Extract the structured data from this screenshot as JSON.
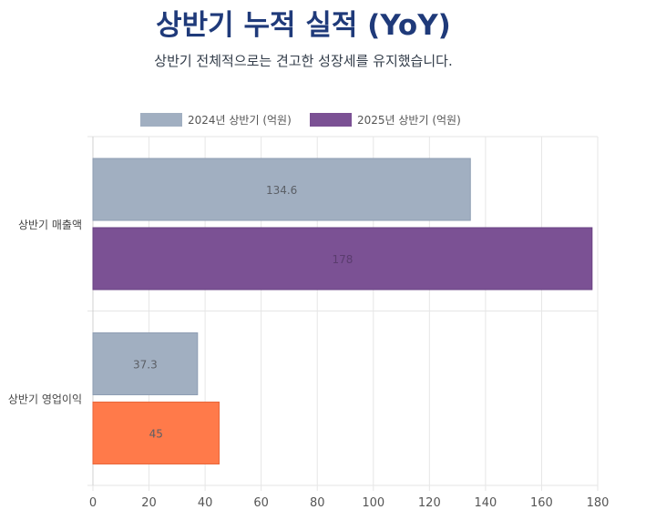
{
  "header": {
    "title": "상반기 누적 실적 (YoY)",
    "subtitle": "상반기 전체적으로는 견고한 성장세를 유지했습니다."
  },
  "colors": {
    "series_2024": "#a1afc1",
    "series_2025": "#7b5194",
    "highlight": "#ff7a4a",
    "grid": "#e6e6e6",
    "text": "#555555"
  },
  "chart_data": {
    "type": "bar",
    "orientation": "horizontal",
    "categories": [
      "상반기 매출액",
      "상반기 영업이익"
    ],
    "series": [
      {
        "name": "2024년 상반기 (억원)",
        "values": [
          134.6,
          37.3
        ]
      },
      {
        "name": "2025년 상반기 (억원)",
        "values": [
          178,
          45
        ]
      }
    ],
    "data_labels": [
      [
        "134.6",
        "37.3"
      ],
      [
        "178",
        "45"
      ]
    ],
    "highlight": {
      "series": 1,
      "category": 1
    },
    "xlim": [
      0,
      180
    ],
    "x_ticks": [
      0,
      20,
      40,
      60,
      80,
      100,
      120,
      140,
      160,
      180
    ],
    "grid": true,
    "legend": "top"
  }
}
